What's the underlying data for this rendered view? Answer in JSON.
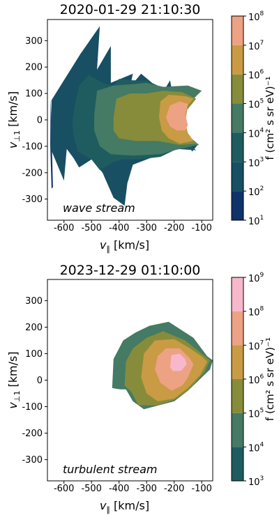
{
  "chart_data": [
    {
      "type": "filled-contour",
      "title": "2020-01-29 21:10:30",
      "xlabel": "v",
      "xlabel_sub": "∥",
      "xlabel_unit": " [km/s]",
      "ylabel": "v",
      "ylabel_sub": "⊥1",
      "ylabel_unit": " [km/s]",
      "xlim": [
        -660,
        -60
      ],
      "ylim": [
        -380,
        380
      ],
      "xticks": [
        -600,
        -500,
        -400,
        -300,
        -200,
        -100
      ],
      "yticks": [
        -300,
        -200,
        -100,
        0,
        100,
        200,
        300
      ],
      "annotation": "wave stream",
      "colorbar": {
        "label": "f (cm² s sr eV)⁻¹",
        "levels": [
          1,
          2,
          3,
          4,
          5,
          6,
          7,
          8
        ],
        "tick_labels": [
          "10",
          "10",
          "10",
          "10",
          "10",
          "10",
          "10",
          "10"
        ],
        "tick_exponents": [
          "1",
          "2",
          "3",
          "4",
          "5",
          "6",
          "7",
          "8"
        ]
      },
      "contours": [
        {
          "level_from": 1,
          "points": [
            [
              -648,
              82
            ],
            [
              -650,
              -90
            ],
            [
              -645,
              -260
            ],
            [
              -640,
              -255
            ]
          ]
        },
        {
          "level_from": 2,
          "points": [
            [
              -645,
              75
            ],
            [
              -540,
              250
            ],
            [
              -470,
              355
            ],
            [
              -480,
              190
            ],
            [
              -430,
              280
            ],
            [
              -430,
              140
            ],
            [
              -350,
              175
            ],
            [
              -360,
              125
            ],
            [
              -320,
              175
            ],
            [
              -240,
              105
            ],
            [
              -215,
              150
            ],
            [
              -205,
              95
            ],
            [
              -150,
              105
            ],
            [
              -120,
              90
            ],
            [
              -175,
              30
            ],
            [
              -165,
              -40
            ],
            [
              -115,
              -95
            ],
            [
              -135,
              -120
            ],
            [
              -150,
              -90
            ],
            [
              -190,
              -110
            ],
            [
              -250,
              -130
            ],
            [
              -350,
              -170
            ],
            [
              -370,
              -240
            ],
            [
              -380,
              -325
            ],
            [
              -420,
              -295
            ],
            [
              -460,
              -200
            ],
            [
              -500,
              -150
            ],
            [
              -545,
              -180
            ],
            [
              -565,
              -145
            ],
            [
              -590,
              -110
            ],
            [
              -600,
              -230
            ],
            [
              -650,
              -105
            ],
            [
              -648,
              -60
            ]
          ]
        },
        {
          "level_from": 3,
          "points": [
            [
              -560,
              60
            ],
            [
              -545,
              130
            ],
            [
              -510,
              170
            ],
            [
              -460,
              140
            ],
            [
              -420,
              130
            ],
            [
              -400,
              155
            ],
            [
              -350,
              150
            ],
            [
              -300,
              150
            ],
            [
              -240,
              120
            ],
            [
              -170,
              125
            ],
            [
              -120,
              110
            ],
            [
              -190,
              -20
            ],
            [
              -150,
              -90
            ],
            [
              -120,
              -115
            ],
            [
              -190,
              -110
            ],
            [
              -250,
              -140
            ],
            [
              -330,
              -150
            ],
            [
              -390,
              -150
            ],
            [
              -420,
              -160
            ],
            [
              -470,
              -190
            ],
            [
              -500,
              -150
            ],
            [
              -550,
              -120
            ],
            [
              -565,
              -60
            ],
            [
              -570,
              -10
            ]
          ]
        },
        {
          "level_from": 4,
          "points": [
            [
              -490,
              20
            ],
            [
              -480,
              110
            ],
            [
              -420,
              130
            ],
            [
              -350,
              135
            ],
            [
              -300,
              140
            ],
            [
              -240,
              125
            ],
            [
              -150,
              130
            ],
            [
              -100,
              110
            ],
            [
              -170,
              40
            ],
            [
              -170,
              -40
            ],
            [
              -110,
              -95
            ],
            [
              -180,
              -110
            ],
            [
              -250,
              -130
            ],
            [
              -350,
              -135
            ],
            [
              -430,
              -130
            ],
            [
              -470,
              -100
            ],
            [
              -490,
              -40
            ]
          ]
        },
        {
          "level_from": 5,
          "points": [
            [
              -420,
              10
            ],
            [
              -410,
              80
            ],
            [
              -360,
              100
            ],
            [
              -300,
              100
            ],
            [
              -240,
              110
            ],
            [
              -170,
              105
            ],
            [
              -120,
              80
            ],
            [
              -175,
              10
            ],
            [
              -160,
              -60
            ],
            [
              -115,
              -90
            ],
            [
              -180,
              -95
            ],
            [
              -260,
              -80
            ],
            [
              -340,
              -80
            ],
            [
              -400,
              -70
            ],
            [
              -420,
              -40
            ]
          ]
        },
        {
          "level_from": 6,
          "points": [
            [
              -255,
              10
            ],
            [
              -250,
              70
            ],
            [
              -220,
              95
            ],
            [
              -160,
              90
            ],
            [
              -130,
              80
            ],
            [
              -150,
              55
            ],
            [
              -160,
              -10
            ],
            [
              -150,
              -50
            ],
            [
              -130,
              -80
            ],
            [
              -180,
              -90
            ],
            [
              -220,
              -70
            ],
            [
              -245,
              -40
            ]
          ]
        },
        {
          "level_from": 7,
          "points": [
            [
              -230,
              10
            ],
            [
              -215,
              55
            ],
            [
              -180,
              70
            ],
            [
              -150,
              60
            ],
            [
              -160,
              20
            ],
            [
              -150,
              -20
            ],
            [
              -160,
              -40
            ],
            [
              -190,
              -40
            ],
            [
              -215,
              -25
            ]
          ]
        }
      ]
    },
    {
      "type": "filled-contour",
      "title": "2023-12-29 01:10:00",
      "xlabel": "v",
      "xlabel_sub": "∥",
      "xlabel_unit": " [km/s]",
      "ylabel": "v",
      "ylabel_sub": "⊥1",
      "ylabel_unit": " [km/s]",
      "xlim": [
        -660,
        -60
      ],
      "ylim": [
        -380,
        380
      ],
      "xticks": [
        -600,
        -500,
        -400,
        -300,
        -200,
        -100
      ],
      "yticks": [
        -300,
        -200,
        -100,
        0,
        100,
        200,
        300
      ],
      "annotation": "turbulent stream",
      "colorbar": {
        "label": "f (cm² s sr eV)⁻¹",
        "levels": [
          3,
          4,
          5,
          6,
          7,
          8,
          9
        ],
        "tick_labels": [
          "10",
          "10",
          "10",
          "10",
          "10",
          "10",
          "10"
        ],
        "tick_exponents": [
          "3",
          "4",
          "5",
          "6",
          "7",
          "8",
          "9"
        ]
      },
      "contours": [
        {
          "level_from": 4,
          "points": [
            [
              -425,
              -30
            ],
            [
              -420,
              80
            ],
            [
              -385,
              150
            ],
            [
              -340,
              180
            ],
            [
              -290,
              205
            ],
            [
              -220,
              220
            ],
            [
              -130,
              160
            ],
            [
              -80,
              90
            ],
            [
              -60,
              75
            ],
            [
              -70,
              40
            ],
            [
              -150,
              -40
            ],
            [
              -200,
              -80
            ],
            [
              -310,
              -110
            ],
            [
              -350,
              -80
            ],
            [
              -375,
              -35
            ],
            [
              -395,
              -35
            ]
          ]
        },
        {
          "level_from": 5,
          "points": [
            [
              -380,
              -20
            ],
            [
              -375,
              70
            ],
            [
              -350,
              120
            ],
            [
              -300,
              160
            ],
            [
              -240,
              185
            ],
            [
              -160,
              150
            ],
            [
              -100,
              100
            ],
            [
              -70,
              75
            ],
            [
              -90,
              30
            ],
            [
              -150,
              -40
            ],
            [
              -200,
              -75
            ],
            [
              -260,
              -95
            ],
            [
              -330,
              -95
            ],
            [
              -355,
              -45
            ]
          ]
        },
        {
          "level_from": 6,
          "points": [
            [
              -320,
              10
            ],
            [
              -310,
              100
            ],
            [
              -270,
              150
            ],
            [
              -200,
              155
            ],
            [
              -150,
              125
            ],
            [
              -100,
              90
            ],
            [
              -80,
              70
            ],
            [
              -105,
              20
            ],
            [
              -150,
              -30
            ],
            [
              -200,
              -70
            ],
            [
              -260,
              -80
            ],
            [
              -300,
              -50
            ]
          ]
        },
        {
          "level_from": 7,
          "points": [
            [
              -270,
              40
            ],
            [
              -260,
              90
            ],
            [
              -230,
              120
            ],
            [
              -180,
              120
            ],
            [
              -145,
              85
            ],
            [
              -130,
              60
            ],
            [
              -150,
              10
            ],
            [
              -170,
              -20
            ],
            [
              -210,
              -40
            ],
            [
              -250,
              -10
            ]
          ]
        },
        {
          "level_from": 8,
          "points": [
            [
              -215,
              50
            ],
            [
              -210,
              95
            ],
            [
              -180,
              100
            ],
            [
              -160,
              80
            ],
            [
              -155,
              60
            ],
            [
              -175,
              35
            ],
            [
              -205,
              35
            ]
          ]
        }
      ]
    }
  ]
}
